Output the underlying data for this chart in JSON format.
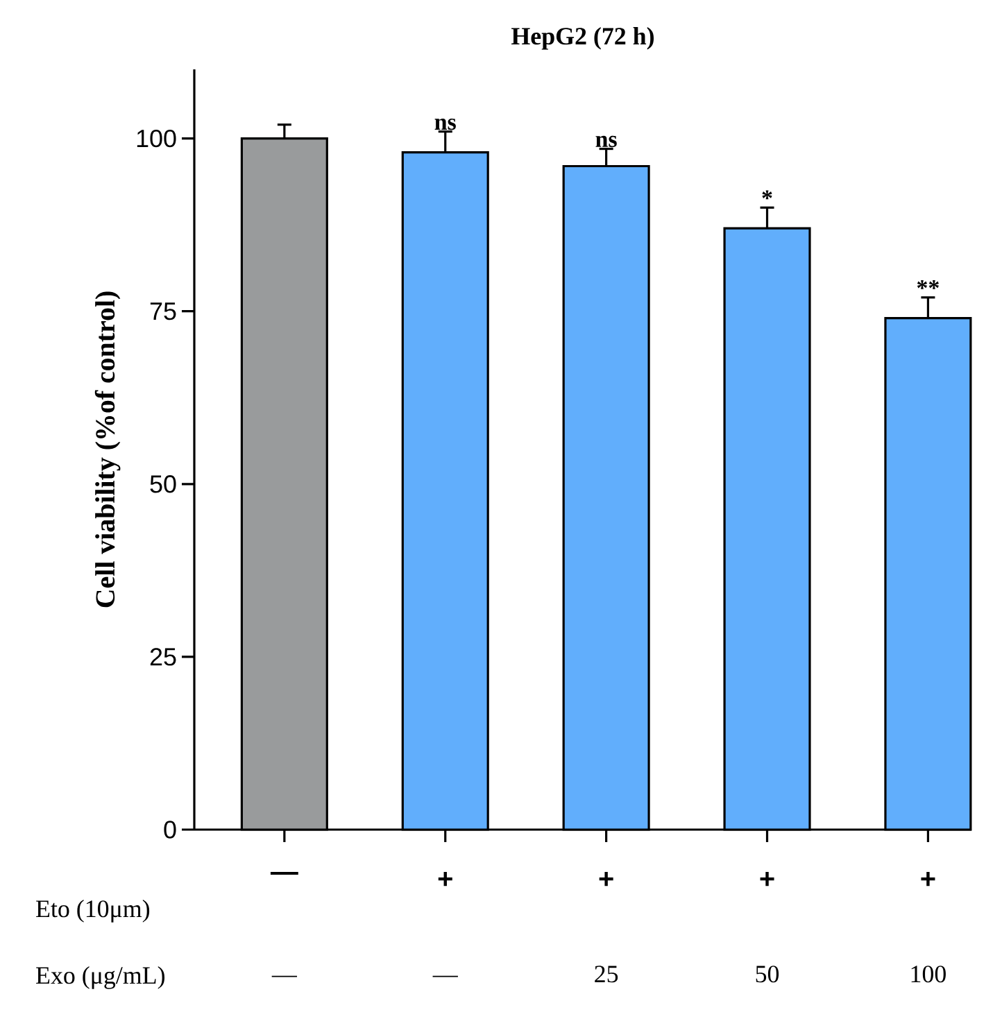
{
  "chart_data": {
    "type": "bar",
    "title": "HepG2 (72 h)",
    "ylabel": "Cell viability (%of control)",
    "categories": [
      "—",
      "+",
      "+",
      "+",
      "+"
    ],
    "values": [
      100,
      98,
      96,
      87,
      74
    ],
    "errors": [
      2,
      3,
      2.5,
      3,
      3
    ],
    "colors": [
      "#999b9c",
      "#61aefc",
      "#61aefc",
      "#61aefc",
      "#61aefc"
    ],
    "ylim": [
      0,
      110
    ],
    "yticks": [
      0,
      25,
      50,
      75,
      100
    ],
    "annotations": [
      "Eto (10μm)",
      "Exo (μg/mL)",
      "—",
      "—",
      "25",
      "50",
      "100",
      "ns",
      "ns",
      "*",
      "**"
    ]
  }
}
